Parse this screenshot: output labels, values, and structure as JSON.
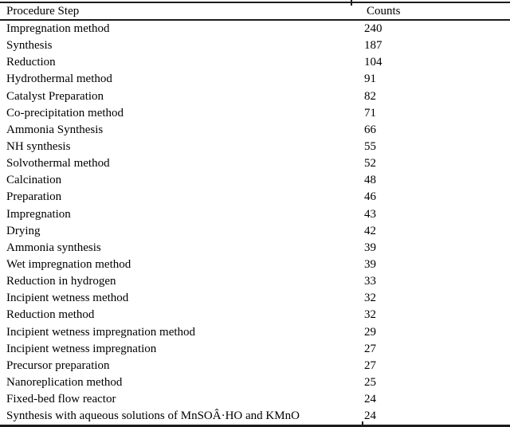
{
  "colors": {
    "background": "#ffffff",
    "text": "#000000",
    "rule": "#1c1c1c"
  },
  "table": {
    "header": {
      "step": "Procedure Step",
      "count": "Counts"
    },
    "rows": [
      {
        "step": "Impregnation method",
        "count": "240"
      },
      {
        "step": "Synthesis",
        "count": "187"
      },
      {
        "step": "Reduction",
        "count": "104"
      },
      {
        "step": "Hydrothermal method",
        "count": "91"
      },
      {
        "step": "Catalyst Preparation",
        "count": "82"
      },
      {
        "step": "Co-precipitation method",
        "count": "71"
      },
      {
        "step": "Ammonia Synthesis",
        "count": "66"
      },
      {
        "step": "NH synthesis",
        "count": "55"
      },
      {
        "step": "Solvothermal method",
        "count": "52"
      },
      {
        "step": "Calcination",
        "count": "48"
      },
      {
        "step": "Preparation",
        "count": "46"
      },
      {
        "step": "Impregnation",
        "count": "43"
      },
      {
        "step": "Drying",
        "count": "42"
      },
      {
        "step": "Ammonia synthesis",
        "count": "39"
      },
      {
        "step": "Wet impregnation method",
        "count": "39"
      },
      {
        "step": "Reduction in hydrogen",
        "count": "33"
      },
      {
        "step": "Incipient wetness method",
        "count": "32"
      },
      {
        "step": "Reduction method",
        "count": "32"
      },
      {
        "step": "Incipient wetness impregnation method",
        "count": "29"
      },
      {
        "step": "Incipient wetness impregnation",
        "count": "27"
      },
      {
        "step": "Precursor preparation",
        "count": "27"
      },
      {
        "step": "Nanoreplication method",
        "count": "25"
      },
      {
        "step": "Fixed-bed flow reactor",
        "count": "24"
      },
      {
        "step": "Synthesis with aqueous solutions of MnSOÂ·HO and KMnO",
        "count": "24"
      }
    ]
  }
}
